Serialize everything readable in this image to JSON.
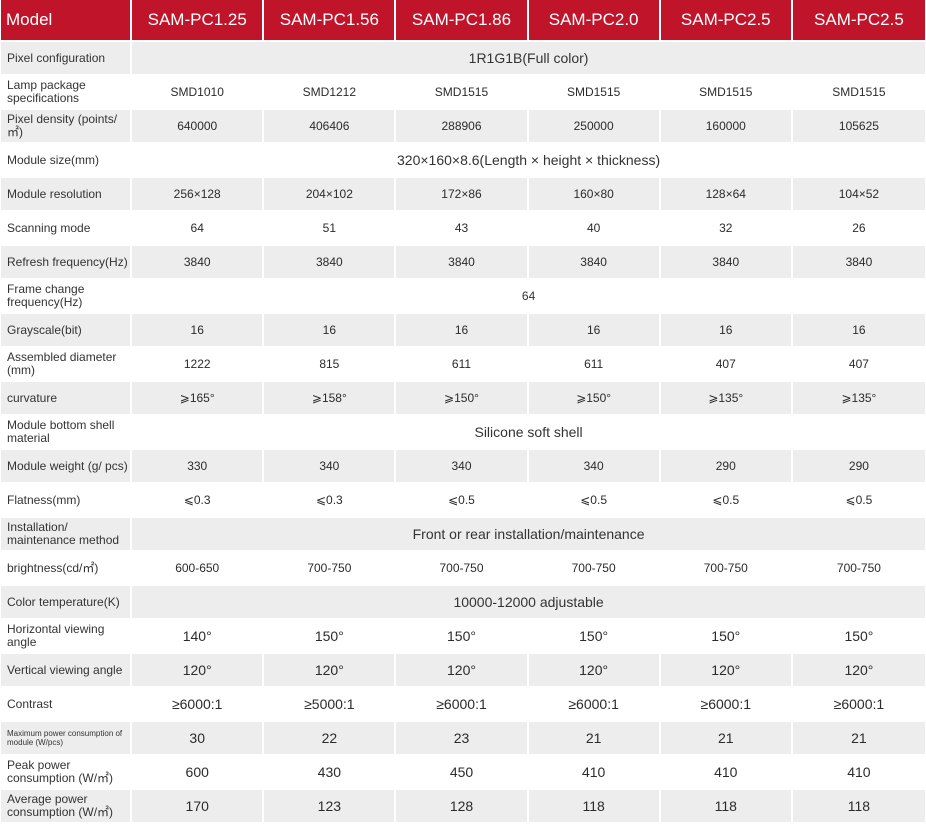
{
  "header": {
    "first": "Model",
    "models": [
      "SAM-PC1.25",
      "SAM-PC1.56",
      "SAM-PC1.86",
      "SAM-PC2.0",
      "SAM-PC2.5",
      "SAM-PC2.5"
    ]
  },
  "rows": [
    {
      "label": "Pixel configuration",
      "span": "1R1G1B(Full color)"
    },
    {
      "label": "Lamp package specifications",
      "values": [
        "SMD1010",
        "SMD1212",
        "SMD1515",
        "SMD1515",
        "SMD1515",
        "SMD1515"
      ]
    },
    {
      "label": "Pixel density (points/㎡)",
      "values": [
        "640000",
        "406406",
        "288906",
        "250000",
        "160000",
        "105625"
      ]
    },
    {
      "label": "Module size(mm)",
      "span": "320×160×8.6(Length × height × thickness)"
    },
    {
      "label": "Module resolution",
      "values": [
        "256×128",
        "204×102",
        "172×86",
        "160×80",
        "128×64",
        "104×52"
      ]
    },
    {
      "label": "Scanning mode",
      "values": [
        "64",
        "51",
        "43",
        "40",
        "32",
        "26"
      ]
    },
    {
      "label": "Refresh frequency(Hz)",
      "values": [
        "3840",
        "3840",
        "3840",
        "3840",
        "3840",
        "3840"
      ]
    },
    {
      "label": "Frame change frequency(Hz)",
      "span": "64"
    },
    {
      "label": "Grayscale(bit)",
      "values": [
        "16",
        "16",
        "16",
        "16",
        "16",
        "16"
      ]
    },
    {
      "label": "Assembled diameter (mm)",
      "values": [
        "1222",
        "815",
        "611",
        "611",
        "407",
        "407"
      ]
    },
    {
      "label": "curvature",
      "values": [
        "⩾165°",
        "⩾158°",
        "⩾150°",
        "⩾150°",
        "⩾135°",
        "⩾135°"
      ]
    },
    {
      "label": "Module bottom shell material",
      "span": "Silicone soft shell"
    },
    {
      "label": "Module weight (g/ pcs)",
      "values": [
        "330",
        "340",
        "340",
        "340",
        "290",
        "290"
      ]
    },
    {
      "label": "Flatness(mm)",
      "values": [
        "⩽0.3",
        "⩽0.3",
        "⩽0.5",
        "⩽0.5",
        "⩽0.5",
        "⩽0.5"
      ]
    },
    {
      "label": "Installation/ maintenance method",
      "span": "Front or rear installation/maintenance"
    },
    {
      "label": "brightness(cd/㎡)",
      "values": [
        "600-650",
        "700-750",
        "700-750",
        "700-750",
        "700-750",
        "700-750"
      ]
    },
    {
      "label": "Color temperature(K)",
      "span": "10000-12000 adjustable"
    },
    {
      "label": "Horizontal viewing angle",
      "values": [
        "140°",
        "150°",
        "150°",
        "150°",
        "150°",
        "150°"
      ]
    },
    {
      "label": "Vertical viewing angle",
      "values": [
        "120°",
        "120°",
        "120°",
        "120°",
        "120°",
        "120°"
      ]
    },
    {
      "label": "Contrast",
      "values": [
        "≥6000:1",
        "≥5000:1",
        "≥6000:1",
        "≥6000:1",
        "≥6000:1",
        "≥6000:1"
      ]
    },
    {
      "label": "Maximum power consumption of module (W/pcs)",
      "values": [
        "30",
        "22",
        "23",
        "21",
        "21",
        "21"
      ]
    },
    {
      "label": "Peak power consumption (W/㎡)",
      "values": [
        "600",
        "430",
        "450",
        "410",
        "410",
        "410"
      ]
    },
    {
      "label": "Average power consumption (W/㎡)",
      "values": [
        "170",
        "123",
        "128",
        "118",
        "118",
        "118"
      ]
    }
  ]
}
